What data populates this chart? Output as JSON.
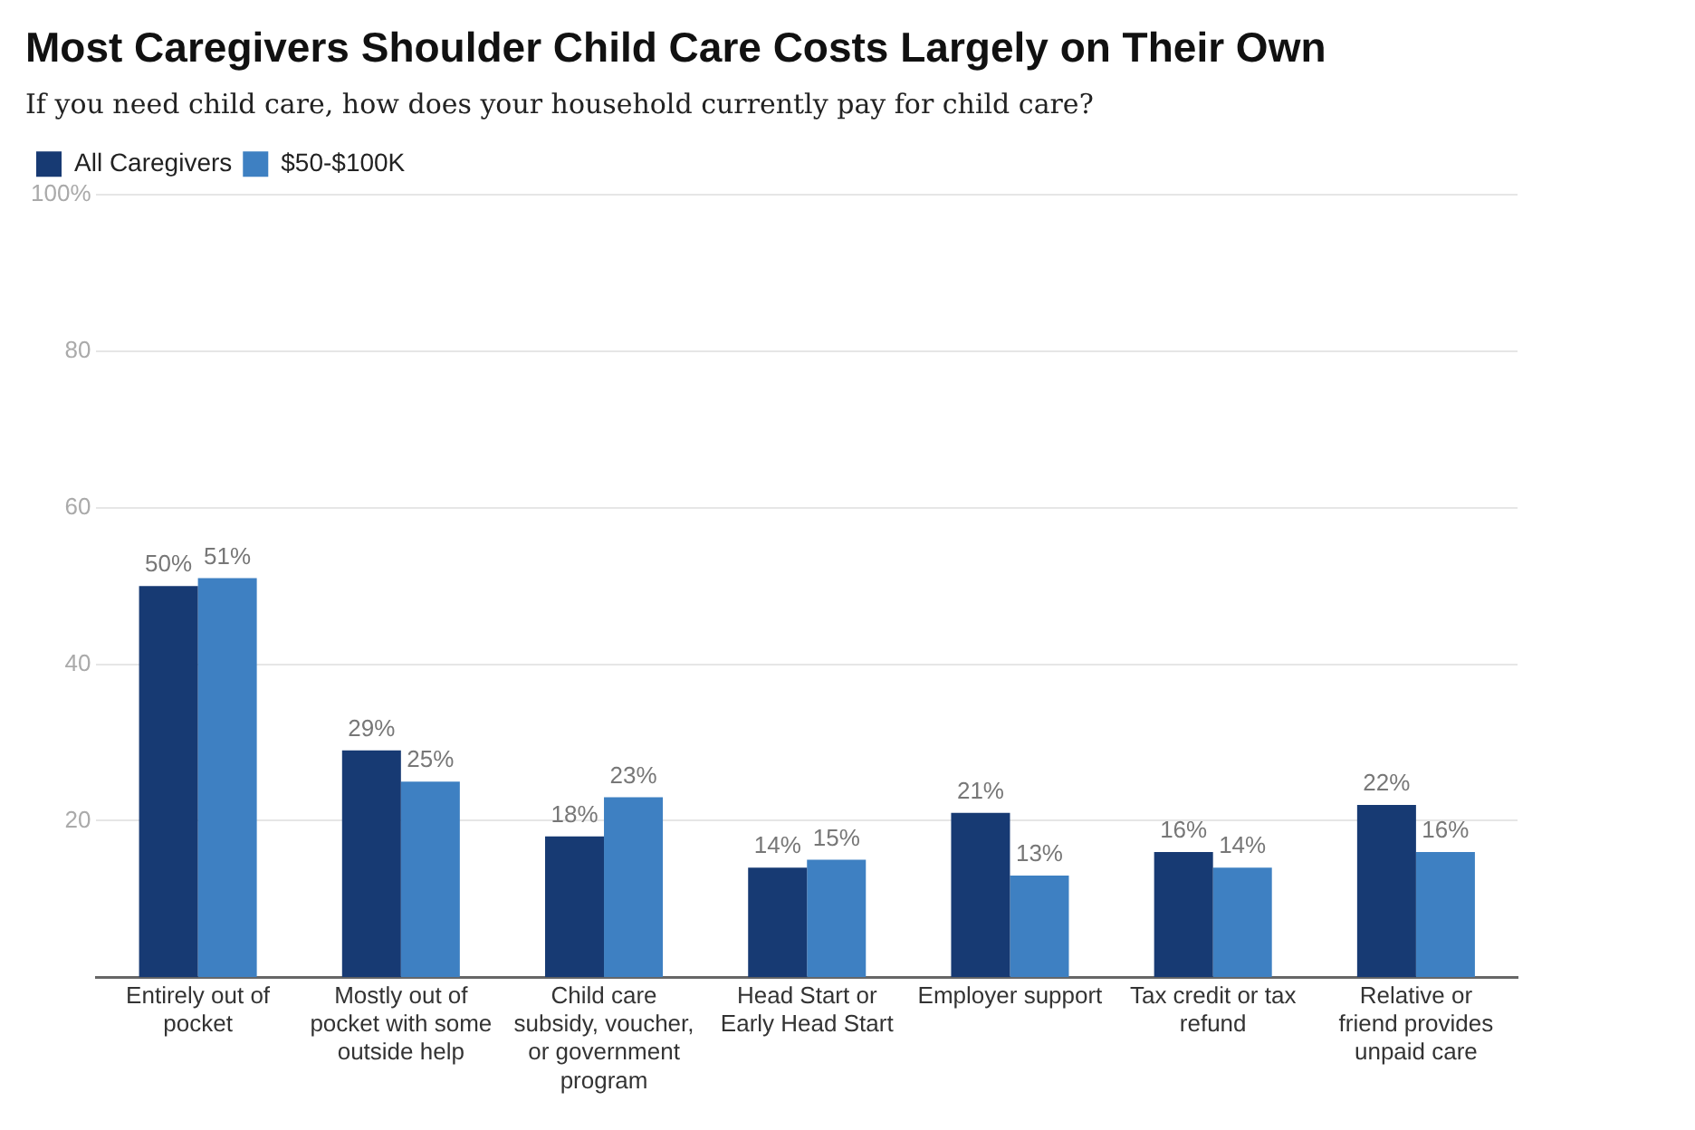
{
  "chart_data": {
    "type": "bar",
    "title": "Most Caregivers Shoulder Child Care Costs Largely on Their Own",
    "subtitle": "If you need child care, how does your household currently pay for child care?",
    "categories": [
      "Entirely out of pocket",
      "Mostly out of pocket with some outside help",
      "Child care subsidy, voucher, or government program",
      "Head Start or Early Head Start",
      "Employer support",
      "Tax credit or tax refund",
      "Relative or friend provides unpaid care"
    ],
    "series": [
      {
        "name": "All Caregivers",
        "color": "#173a73",
        "values": [
          50,
          29,
          18,
          14,
          21,
          16,
          22
        ],
        "value_labels": [
          "50%",
          "29%",
          "18%",
          "14%",
          "21%",
          "16%",
          "22%"
        ]
      },
      {
        "name": "$50-$100K",
        "color": "#3e80c2",
        "values": [
          51,
          25,
          23,
          15,
          13,
          14,
          16
        ],
        "value_labels": [
          "51%",
          "25%",
          "23%",
          "15%",
          "13%",
          "14%",
          "16%"
        ]
      }
    ],
    "ylim": [
      0,
      100
    ],
    "yticks": [
      20,
      40,
      60,
      80,
      {
        "value": 100,
        "label": "100%"
      }
    ],
    "grid": "y",
    "legend": "top left"
  }
}
